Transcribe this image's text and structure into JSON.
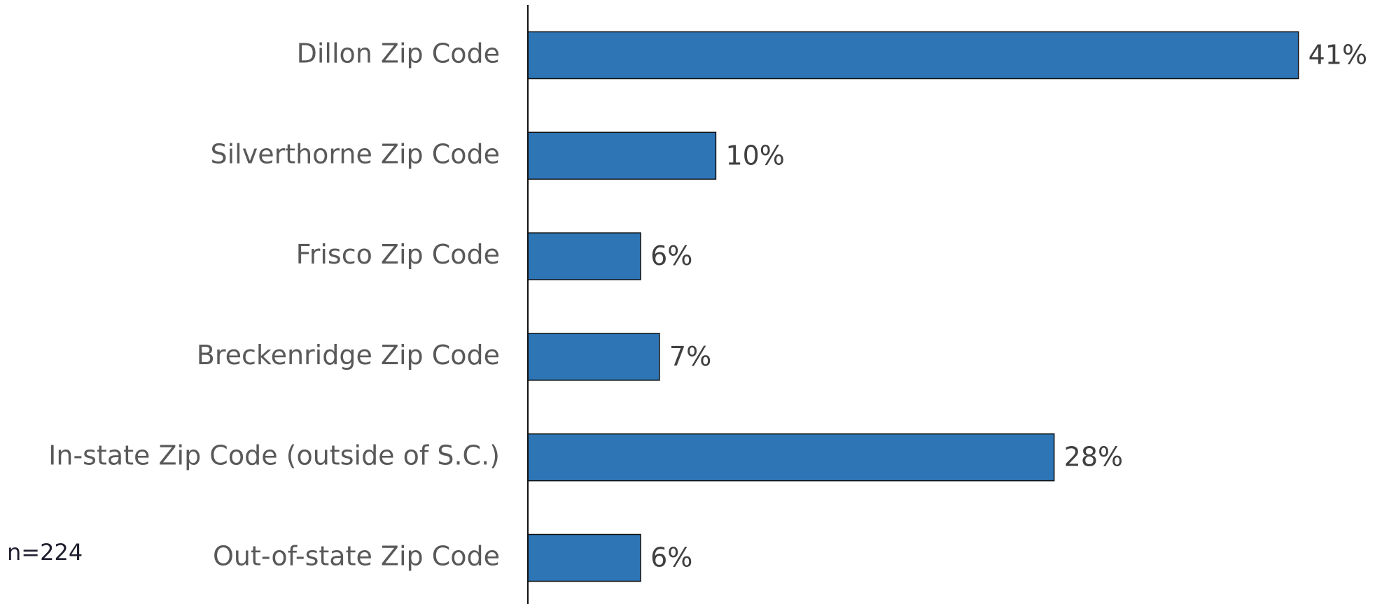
{
  "chart_data": {
    "type": "hbar",
    "categories": [
      "Dillon Zip Code",
      "Silverthorne Zip Code",
      "Frisco Zip Code",
      "Breckenridge Zip Code",
      "In-state Zip Code (outside of S.C.)",
      "Out-of-state Zip Code"
    ],
    "values": [
      41,
      10,
      6,
      7,
      28,
      6
    ],
    "value_labels": [
      "41%",
      "10%",
      "6%",
      "7%",
      "28%",
      "6%"
    ],
    "color": "#2e75b6",
    "xlim": [
      0,
      45
    ],
    "annotation": "n=224"
  }
}
